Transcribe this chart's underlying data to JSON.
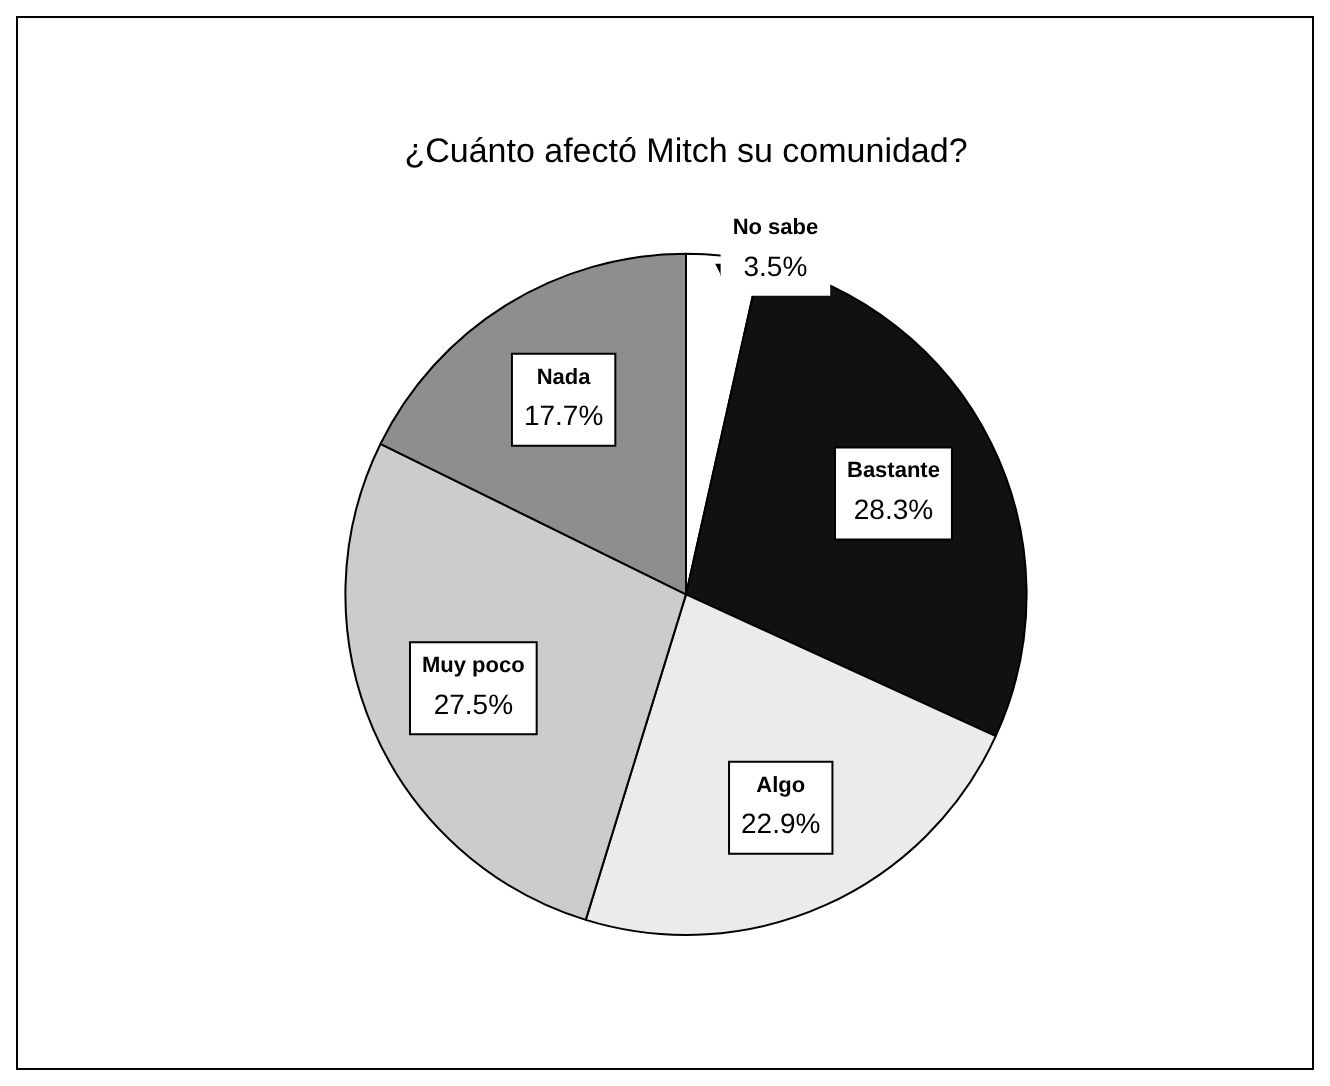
{
  "chart_data": {
    "type": "pie",
    "title": "¿Cuánto afectó Mitch su comunidad?",
    "categories": [
      "No sabe",
      "Bastante",
      "Algo",
      "Muy poco",
      "Nada"
    ],
    "values": [
      3.5,
      28.3,
      22.9,
      27.5,
      17.7
    ],
    "value_labels": [
      "3.5%",
      "28.3%",
      "22.9%",
      "27.5%",
      "17.7%"
    ],
    "colors": [
      "#ffffff",
      "#111111",
      "#ebebeb",
      "#cccccc",
      "#8e8e8e"
    ],
    "legend": false
  }
}
